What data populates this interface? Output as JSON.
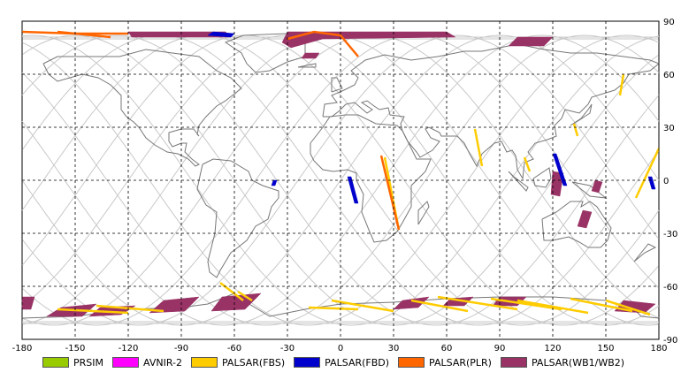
{
  "chart_data": {
    "type": "map",
    "x_ticks": [
      "-180",
      "-150",
      "-120",
      "-90",
      "-60",
      "-30",
      "0",
      "30",
      "60",
      "90",
      "120",
      "150",
      "180"
    ],
    "y_ticks": [
      "90",
      "60",
      "30",
      "0",
      "-30",
      "-60",
      "-90"
    ],
    "xlim": [
      -180,
      180
    ],
    "ylim": [
      -90,
      90
    ],
    "grid": true,
    "legend": [
      {
        "label": "PRSIM",
        "color": "#99cc00"
      },
      {
        "label": "AVNIR-2",
        "color": "#ff00ff"
      },
      {
        "label": "PALSAR(FBS)",
        "color": "#ffcc00"
      },
      {
        "label": "PALSAR(FBD)",
        "color": "#0000cc"
      },
      {
        "label": "PALSAR(PLR)",
        "color": "#ff6600"
      },
      {
        "label": "PALSAR(WB1/WB2)",
        "color": "#993366"
      }
    ]
  }
}
